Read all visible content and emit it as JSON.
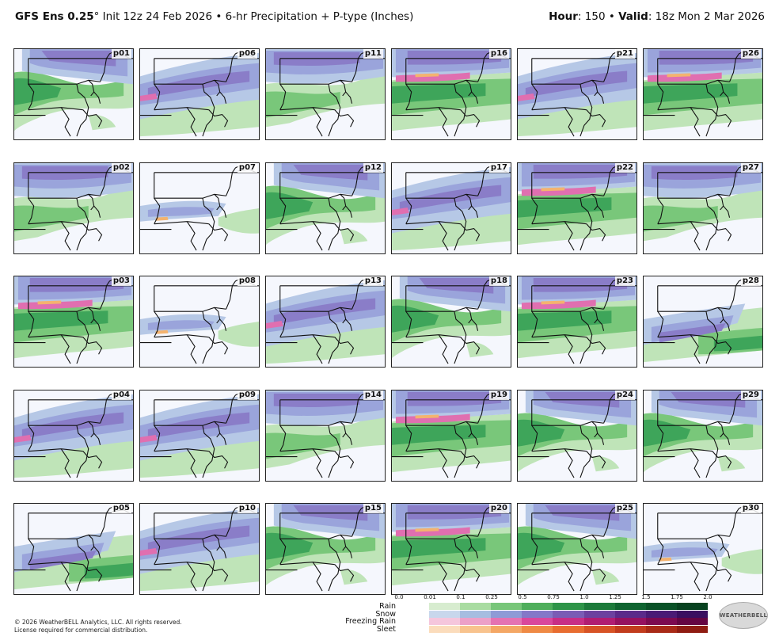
{
  "header": {
    "model": "GFS Ens 0.25",
    "degree": "°",
    "init": "Init 12z 24 Feb 2026",
    "sep": "•",
    "product": "6-hr Precipitation + P-type (Inches)",
    "hour_label": "Hour",
    "hour_value": ": 150",
    "valid_label": "Valid",
    "valid_value": ": 18z Mon 2 Mar 2026"
  },
  "panels": [
    {
      "label": "p01",
      "variant": 0
    },
    {
      "label": "p06",
      "variant": 3
    },
    {
      "label": "p11",
      "variant": 1
    },
    {
      "label": "p16",
      "variant": 2
    },
    {
      "label": "p21",
      "variant": 3
    },
    {
      "label": "p26",
      "variant": 2
    },
    {
      "label": "p02",
      "variant": 1
    },
    {
      "label": "p07",
      "variant": 4
    },
    {
      "label": "p12",
      "variant": 0
    },
    {
      "label": "p17",
      "variant": 3
    },
    {
      "label": "p22",
      "variant": 2
    },
    {
      "label": "p27",
      "variant": 1
    },
    {
      "label": "p03",
      "variant": 2
    },
    {
      "label": "p08",
      "variant": 4
    },
    {
      "label": "p13",
      "variant": 3
    },
    {
      "label": "p18",
      "variant": 0
    },
    {
      "label": "p23",
      "variant": 2
    },
    {
      "label": "p28",
      "variant": 5
    },
    {
      "label": "p04",
      "variant": 3
    },
    {
      "label": "p09",
      "variant": 3
    },
    {
      "label": "p14",
      "variant": 1
    },
    {
      "label": "p19",
      "variant": 2
    },
    {
      "label": "p24",
      "variant": 0
    },
    {
      "label": "p29",
      "variant": 0
    },
    {
      "label": "p05",
      "variant": 5
    },
    {
      "label": "p10",
      "variant": 3
    },
    {
      "label": "p15",
      "variant": 0
    },
    {
      "label": "p20",
      "variant": 2
    },
    {
      "label": "p25",
      "variant": 0
    },
    {
      "label": "p30",
      "variant": 4
    }
  ],
  "legend": {
    "ticks": [
      "0.0",
      "0.01",
      "0.1",
      "0.25",
      "0.5",
      "0.75",
      "1.0",
      "1.25",
      "1.5",
      "1.75",
      "2.0"
    ],
    "rows": [
      {
        "label": "Rain",
        "colors": [
          "#d7eccf",
          "#a9dca1",
          "#78c679",
          "#4fae5b",
          "#2e9448",
          "#1c7a3a",
          "#0f6430",
          "#0a5227",
          "#07421f"
        ]
      },
      {
        "label": "Snow",
        "colors": [
          "#c8d7ec",
          "#a6bde0",
          "#8e9bd6",
          "#8478c8",
          "#7a5cb5",
          "#6c419f",
          "#5b2a8a",
          "#4a1b75",
          "#3a0f60"
        ]
      },
      {
        "label": "Freezing Rain",
        "colors": [
          "#f5c6dc",
          "#eca0c8",
          "#e472b2",
          "#d9479c",
          "#c72e86",
          "#b01d72",
          "#951160",
          "#7c0a50",
          "#640542"
        ]
      },
      {
        "label": "Sleet",
        "colors": [
          "#fbdcbc",
          "#f8c38e",
          "#f4a765",
          "#ef8a45",
          "#e86d30",
          "#d75325",
          "#c23c1d",
          "#a92a17",
          "#8f1c12"
        ]
      }
    ]
  },
  "footer": {
    "line1": "© 2026 WeatherBELL Analytics, LLC. All rights reserved.",
    "line2": "License required for commercial distribution."
  },
  "logo": {
    "text": "WEATHERBELL"
  },
  "colors": {
    "background": "#f5f7fd",
    "snow_light": "#b6c8e6",
    "snow_mid": "#9aa4db",
    "snow_dark": "#8a7dc8",
    "rain_light": "#bfe4b8",
    "rain_mid": "#79c77a",
    "rain_dark": "#3ea55a",
    "frzrain": "#e06fb0",
    "sleet": "#f4b36f"
  }
}
